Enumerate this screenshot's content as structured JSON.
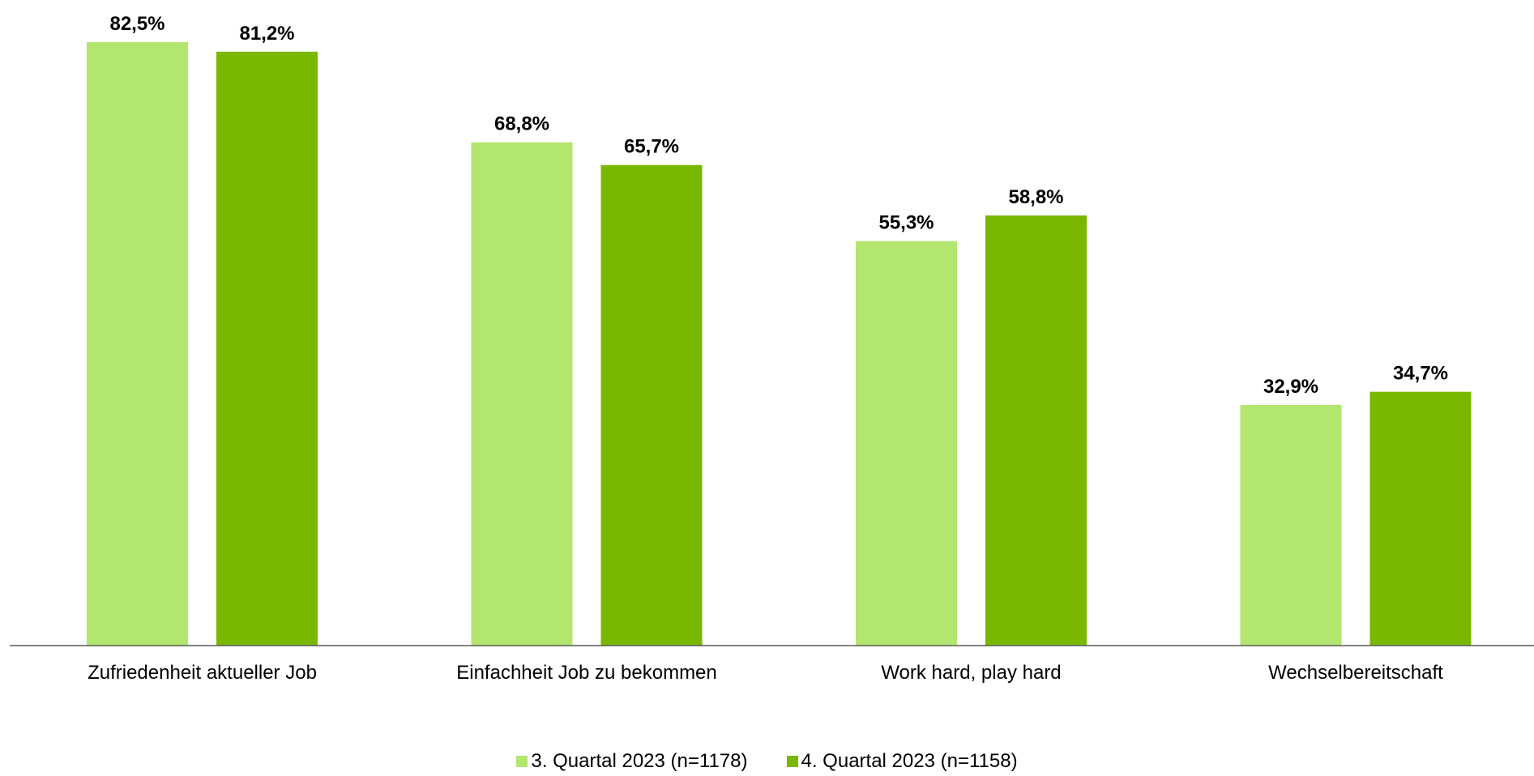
{
  "chart_data": {
    "type": "bar",
    "categories": [
      "Zufriedenheit aktueller Job",
      "Einfachheit Job zu bekommen",
      "Work hard, play hard",
      "Wechselbereitschaft"
    ],
    "series": [
      {
        "name": "3. Quartal 2023 (n=1178)",
        "values": [
          82.5,
          68.8,
          55.3,
          32.9
        ],
        "labels": [
          "82,5%",
          "68,8%",
          "55,3%",
          "32,9%"
        ],
        "color": "#b3e66e"
      },
      {
        "name": "4. Quartal 2023 (n=1158)",
        "values": [
          81.2,
          65.7,
          58.8,
          34.7
        ],
        "labels": [
          "81,2%",
          "65,7%",
          "58,8%",
          "34,7%"
        ],
        "color": "#7ab800"
      }
    ],
    "title": "",
    "xlabel": "",
    "ylabel": "",
    "ylim": [
      0,
      100
    ],
    "grid": false,
    "legend_position": "bottom-center"
  }
}
